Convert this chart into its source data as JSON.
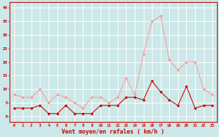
{
  "hours": [
    0,
    1,
    2,
    3,
    4,
    5,
    6,
    7,
    8,
    9,
    10,
    11,
    12,
    13,
    14,
    15,
    16,
    17,
    18,
    19,
    20,
    21,
    22,
    23
  ],
  "wind_avg": [
    3,
    3,
    3,
    4,
    1,
    1,
    4,
    1,
    1,
    1,
    4,
    4,
    4,
    7,
    7,
    6,
    13,
    9,
    6,
    4,
    11,
    3,
    4,
    4
  ],
  "wind_gust": [
    8,
    7,
    7,
    10,
    5,
    8,
    7,
    5,
    3,
    7,
    7,
    5,
    7,
    14,
    8,
    23,
    35,
    37,
    21,
    17,
    20,
    20,
    10,
    8
  ],
  "bg_color": "#cce8e8",
  "grid_color": "#ffffff",
  "avg_color": "#cc0000",
  "gust_color": "#ff9999",
  "xlabel": "Vent moyen/en rafales ( km/h )",
  "ylabel_ticks": [
    0,
    5,
    10,
    15,
    20,
    25,
    30,
    35,
    40
  ],
  "ylim": [
    -2,
    42
  ],
  "xlim": [
    -0.5,
    23.5
  ]
}
